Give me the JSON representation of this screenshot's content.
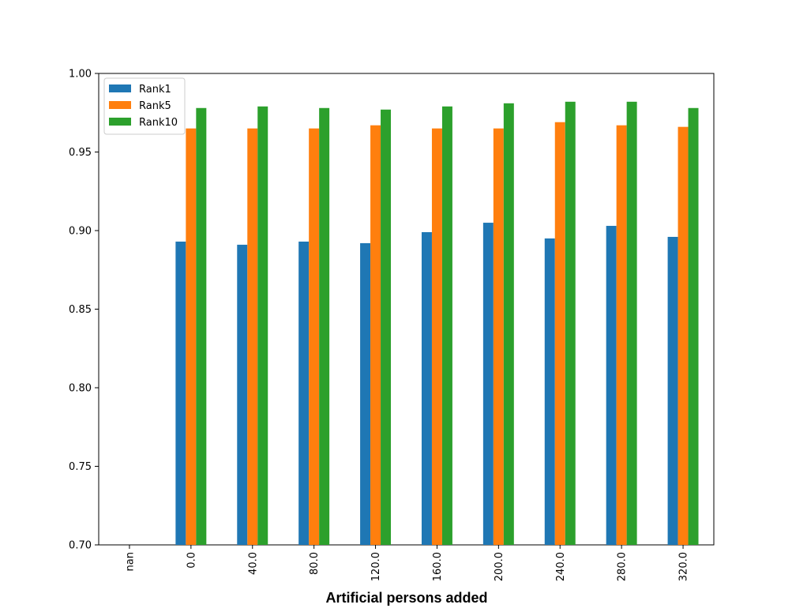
{
  "chart_data": {
    "type": "bar",
    "title": "",
    "xlabel": "Artificial persons added",
    "ylabel": "",
    "ylim": [
      0.7,
      1.0
    ],
    "yticks": [
      "0.70",
      "0.75",
      "0.80",
      "0.85",
      "0.90",
      "0.95",
      "1.00"
    ],
    "categories": [
      "nan",
      "0.0",
      "40.0",
      "80.0",
      "120.0",
      "160.0",
      "200.0",
      "240.0",
      "280.0",
      "320.0"
    ],
    "series": [
      {
        "name": "Rank1",
        "color": "#1f77b4",
        "values": [
          null,
          0.893,
          0.891,
          0.893,
          0.892,
          0.899,
          0.905,
          0.895,
          0.903,
          0.896
        ]
      },
      {
        "name": "Rank5",
        "color": "#ff7f0e",
        "values": [
          null,
          0.965,
          0.965,
          0.965,
          0.967,
          0.965,
          0.965,
          0.969,
          0.967,
          0.966
        ]
      },
      {
        "name": "Rank10",
        "color": "#2ca02c",
        "values": [
          null,
          0.978,
          0.979,
          0.978,
          0.977,
          0.979,
          0.981,
          0.982,
          0.982,
          0.978
        ]
      }
    ],
    "legend_position": "top-left",
    "grid": false
  }
}
